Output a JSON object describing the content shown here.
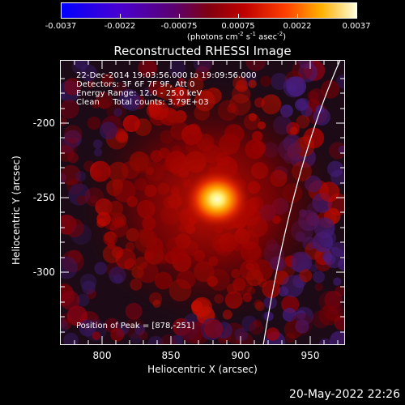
{
  "colorbar": {
    "ticks": [
      "-0.0037",
      "-0.0022",
      "-0.00075",
      "0.00075",
      "0.0022",
      "0.0037"
    ],
    "units_prefix": "(photons cm",
    "units_exp1": "-2",
    "units_mid": " s",
    "units_exp2": "-1",
    "units_mid2": " asec",
    "units_exp3": "-2",
    "units_suffix": ")"
  },
  "title": "Reconstructed RHESSI Image",
  "info": {
    "line1": "22-Dec-2014 19:03:56.000 to 19:09:56.000",
    "line2": "Detectors: 3F 6F 7F 9F, Att 0",
    "line3": "Energy Range: 12.0 - 25.0 keV",
    "line4": "Clean     Total counts: 3.79E+03"
  },
  "peak": "Position of Peak = [878,-251]",
  "axes": {
    "xlabel": "Heliocentric X (arcsec)",
    "ylabel": "Heliocentric Y (arcsec)",
    "xticks": [
      "800",
      "850",
      "900",
      "950"
    ],
    "yticks": [
      "-200",
      "-250",
      "-300"
    ]
  },
  "date": "20-May-2022 22:26",
  "colors": {
    "background": "#000000",
    "axes": "#ffffff",
    "limb": "#ffffff"
  }
}
